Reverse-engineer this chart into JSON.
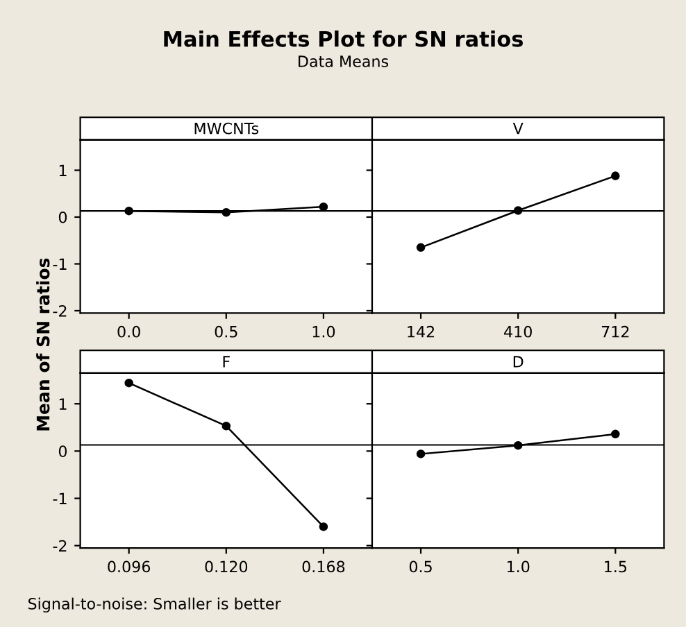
{
  "chart_data": [
    {
      "type": "other",
      "title": "Main Effects Plot for SN ratios",
      "subtitle": "Data Means",
      "ylabel": "Mean of SN ratios",
      "annotations": [
        "Signal-to-noise: Smaller is better"
      ]
    },
    {
      "type": "line",
      "title": "MWCNTs",
      "categories": [
        "0.0",
        "0.5",
        "1.0"
      ],
      "series": [
        {
          "color": "#000000",
          "values": [
            0.13,
            0.1,
            0.22
          ]
        }
      ],
      "ylim": [
        -2.05,
        1.65
      ],
      "yticks": [
        -2,
        -1,
        0,
        1
      ],
      "marker": "circle",
      "line_style": "solid",
      "grid": false,
      "ref_lines": [
        {
          "axis": "y",
          "value": 0.13,
          "color": "#000000"
        }
      ]
    },
    {
      "type": "line",
      "title": "V",
      "categories": [
        "142",
        "410",
        "712"
      ],
      "series": [
        {
          "color": "#000000",
          "values": [
            -0.65,
            0.14,
            0.88
          ]
        }
      ],
      "ylim": [
        -2.05,
        1.65
      ],
      "yticks": [
        -2,
        -1,
        0,
        1
      ],
      "tick_labels": "x",
      "marker": "circle",
      "line_style": "solid",
      "grid": false,
      "ref_lines": [
        {
          "axis": "y",
          "value": 0.13,
          "color": "#000000"
        }
      ]
    },
    {
      "type": "line",
      "title": "F",
      "categories": [
        "0.096",
        "0.120",
        "0.168"
      ],
      "series": [
        {
          "color": "#000000",
          "values": [
            1.44,
            0.53,
            -1.6
          ]
        }
      ],
      "ylim": [
        -2.05,
        1.65
      ],
      "yticks": [
        -2,
        -1,
        0,
        1
      ],
      "marker": "circle",
      "line_style": "solid",
      "grid": false,
      "ref_lines": [
        {
          "axis": "y",
          "value": 0.13,
          "color": "#000000"
        }
      ]
    },
    {
      "type": "line",
      "title": "D",
      "categories": [
        "0.5",
        "1.0",
        "1.5"
      ],
      "series": [
        {
          "color": "#000000",
          "values": [
            -0.06,
            0.12,
            0.36
          ]
        }
      ],
      "ylim": [
        -2.05,
        1.65
      ],
      "yticks": [
        -2,
        -1,
        0,
        1
      ],
      "tick_labels": "x",
      "marker": "circle",
      "line_style": "solid",
      "grid": false,
      "ref_lines": [
        {
          "axis": "y",
          "value": 0.13,
          "color": "#000000"
        }
      ]
    }
  ]
}
